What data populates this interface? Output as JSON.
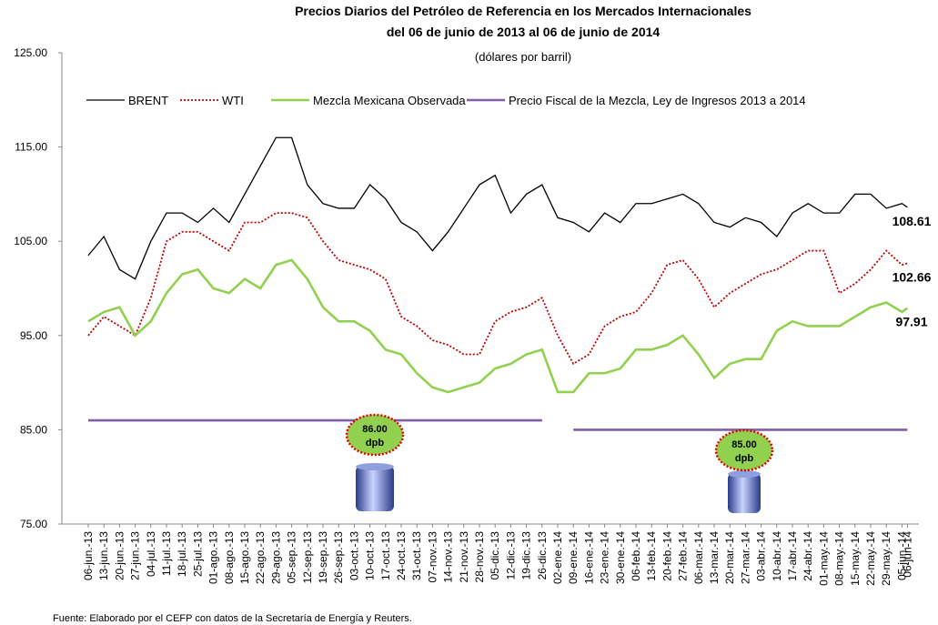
{
  "chart_data": {
    "type": "line",
    "title": "Precios Diarios del Petróleo de Referencia en los Mercados Internacionales",
    "title_line2": "del 06 de junio de 2013 al 06 de junio de 2014",
    "subtitle": "(dólares por barril)",
    "footer": "Fuente: Elaborado por el CEFP con datos de la Secretaría de Energía y Reuters.",
    "categories": [
      "06-jun.-13",
      "13-jun.-13",
      "20-jun.-13",
      "27-jun.-13",
      "04-jul.-13",
      "11-jul.-13",
      "18-jul.-13",
      "25-jul.-13",
      "01-ago.-13",
      "08-ago.-13",
      "15-ago.-13",
      "22-ago.-13",
      "29-ago.-13",
      "05-sep.-13",
      "12-sep.-13",
      "19-sep.-13",
      "26-sep.-13",
      "03-oct.-13",
      "10-oct.-13",
      "17-oct.-13",
      "24-oct.-13",
      "31-oct.-13",
      "07-nov.-13",
      "14-nov.-13",
      "21-nov.-13",
      "28-nov.-13",
      "05-dic.-13",
      "12-dic.-13",
      "19-dic.-13",
      "26-dic.-13",
      "02-ene.-14",
      "09-ene.-14",
      "16-ene.-14",
      "23-ene.-14",
      "30-ene.-14",
      "06-feb.-14",
      "13-feb.-14",
      "20-feb.-14",
      "27-feb.-14",
      "06-mar.-14",
      "13-mar.-14",
      "20-mar.-14",
      "27-mar.-14",
      "03-abr.-14",
      "10-abr.-14",
      "17-abr.-14",
      "24-abr.-14",
      "01-may.-14",
      "08-may.-14",
      "15-may.-14",
      "22-may.-14",
      "29-may.-14",
      "05-jun.-14",
      "06-jun-14"
    ],
    "series": [
      {
        "name": "BRENT",
        "color": "#000000",
        "style": "solid",
        "width": 1.3,
        "values": [
          103.5,
          105.5,
          102,
          101,
          105,
          108,
          108,
          107,
          108.5,
          107,
          110,
          113,
          116,
          116,
          111,
          109,
          108.5,
          108.5,
          111,
          109.5,
          107,
          106,
          104,
          106,
          108.5,
          111,
          112,
          108,
          110,
          111,
          107.5,
          107,
          106,
          108,
          107,
          109,
          109,
          109.5,
          110,
          109,
          107,
          106.5,
          107.5,
          107,
          105.5,
          108,
          109,
          108,
          108,
          110,
          110,
          108.5,
          109,
          108.61
        ]
      },
      {
        "name": "WTI",
        "color": "#c00000",
        "style": "dotted",
        "width": 1.8,
        "values": [
          95,
          97,
          96,
          95,
          99,
          105,
          106,
          106,
          105,
          104,
          107,
          107,
          108,
          108,
          107.5,
          105,
          103,
          102.5,
          102,
          101,
          97,
          96,
          94.5,
          94,
          93,
          93,
          96.5,
          97.5,
          98,
          99,
          95,
          92,
          93,
          96,
          97,
          97.5,
          99.5,
          102.5,
          103,
          101,
          98,
          99.5,
          100.5,
          101.5,
          102,
          103,
          104,
          104,
          99.5,
          100.5,
          102,
          104,
          102.5,
          102.66
        ]
      },
      {
        "name": "Mezcla Mexicana Observada",
        "color": "#92d050",
        "style": "solid",
        "width": 2.6,
        "values": [
          96.5,
          97.5,
          98,
          95,
          96.5,
          99.5,
          101.5,
          102,
          100,
          99.5,
          101,
          100,
          102.5,
          103,
          101,
          98,
          96.5,
          96.5,
          95.5,
          93.5,
          93,
          91,
          89.5,
          89,
          89.5,
          90,
          91.5,
          92,
          93,
          93.5,
          89,
          89,
          91,
          91,
          91.5,
          93.5,
          93.5,
          94,
          95,
          93,
          90.5,
          92,
          92.5,
          92.5,
          95.5,
          96.5,
          96,
          96,
          96,
          97,
          98,
          98.5,
          97.5,
          97.91
        ]
      },
      {
        "name": "Precio Fiscal de la Mezcla, Ley de Ingresos 2013 a 2014",
        "color": "#7f5fa8",
        "style": "solid",
        "width": 2.6,
        "values": [
          86,
          86,
          86,
          86,
          86,
          86,
          86,
          86,
          86,
          86,
          86,
          86,
          86,
          86,
          86,
          86,
          86,
          86,
          86,
          86,
          86,
          86,
          86,
          86,
          86,
          86,
          86,
          86,
          86,
          86,
          null,
          85,
          85,
          85,
          85,
          85,
          85,
          85,
          85,
          85,
          85,
          85,
          85,
          85,
          85,
          85,
          85,
          85,
          85,
          85,
          85,
          85,
          85,
          85
        ]
      }
    ],
    "end_labels": [
      0,
      1,
      2
    ],
    "annotations": [
      {
        "value": "86.00",
        "unit": "dpb"
      },
      {
        "value": "85.00",
        "unit": "dpb"
      }
    ],
    "ylim": [
      75,
      125
    ],
    "yticks": [
      {
        "value": 75,
        "label": "75.00"
      },
      {
        "value": 85,
        "label": "85.00"
      },
      {
        "value": 95,
        "label": "95.00"
      },
      {
        "value": 105,
        "label": "105.00"
      },
      {
        "value": 115,
        "label": "115.00"
      },
      {
        "value": 125,
        "label": "125.00"
      }
    ],
    "grid": false
  }
}
